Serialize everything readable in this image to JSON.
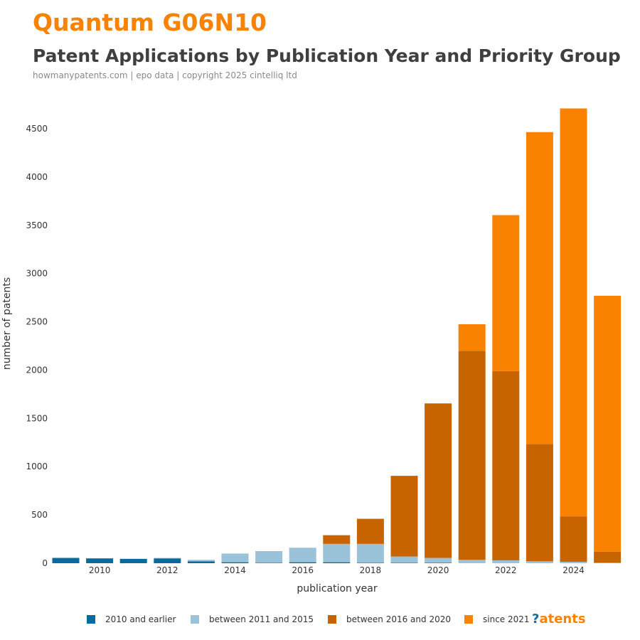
{
  "header": {
    "topic": "Quantum G06N10",
    "title": "Patent Applications by Publication Year and Priority Group",
    "subtitle": "howmanypatents.com | epo data | copyright 2025 cintelliq ltd"
  },
  "brand": {
    "mark": "?",
    "text": "atents"
  },
  "colors": {
    "series": [
      "#0b6a9c",
      "#9ac2d8",
      "#c86400",
      "#f98200"
    ]
  },
  "chart_data": {
    "type": "bar",
    "stacked": true,
    "xlabel": "publication year",
    "ylabel": "number of patents",
    "x_ticks": [
      "2010",
      "2012",
      "2014",
      "2016",
      "2018",
      "2020",
      "2022",
      "2024"
    ],
    "y_ticks": [
      "0",
      "500",
      "1000",
      "1500",
      "2000",
      "2500",
      "3000",
      "3500",
      "4000",
      "4500"
    ],
    "ylim": [
      0,
      4800
    ],
    "legend_position": "bottom",
    "categories": [
      2009,
      2010,
      2011,
      2012,
      2013,
      2014,
      2015,
      2016,
      2017,
      2018,
      2019,
      2020,
      2021,
      2022,
      2023,
      2024,
      2025
    ],
    "series": [
      {
        "name": "2010 and earlier",
        "values": [
          55,
          50,
          45,
          50,
          20,
          10,
          5,
          10,
          10,
          5,
          5,
          5,
          0,
          0,
          0,
          0,
          0
        ]
      },
      {
        "name": "between 2011 and 2015",
        "values": [
          0,
          0,
          0,
          5,
          15,
          90,
          120,
          150,
          190,
          195,
          65,
          50,
          35,
          30,
          20,
          15,
          5
        ]
      },
      {
        "name": "between 2016 and 2020",
        "values": [
          0,
          0,
          0,
          0,
          0,
          0,
          0,
          0,
          90,
          260,
          835,
          1600,
          2165,
          1960,
          1215,
          470,
          115
        ]
      },
      {
        "name": "since 2021",
        "values": [
          0,
          0,
          0,
          0,
          0,
          0,
          0,
          0,
          0,
          0,
          0,
          0,
          275,
          1615,
          3230,
          4225,
          2650
        ]
      }
    ]
  }
}
